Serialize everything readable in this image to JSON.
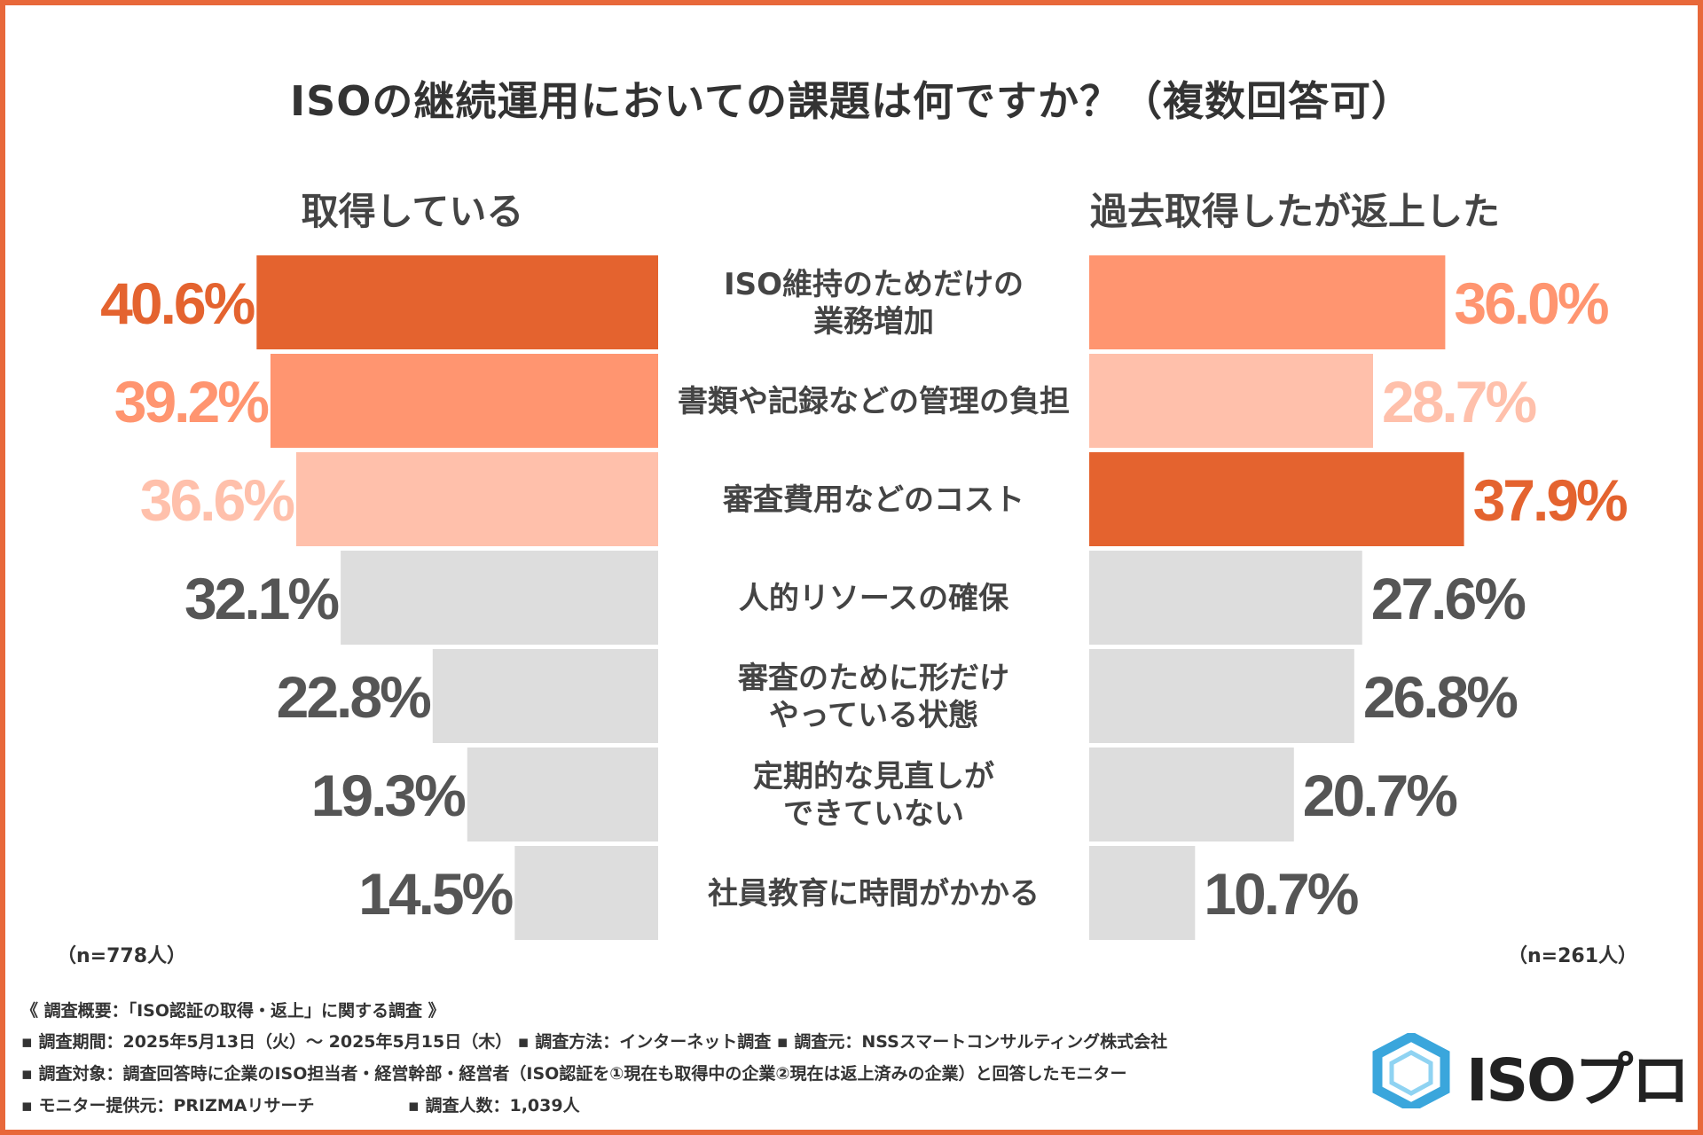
{
  "title": "ISOの継続運用においての課題は何ですか？（複数回答可）",
  "left_heading": "取得している",
  "right_heading": "過去取得したが返上した",
  "left_n": "（n=778人）",
  "right_n": "（n=261人）",
  "colors": {
    "top1": "#e4632f",
    "top2": "#ff9570",
    "top3": "#ffc0ab",
    "other": "#dddddd",
    "label_other": "#555555",
    "frame": "#e8683a",
    "logo": "#3aa6dc"
  },
  "chart_data": {
    "type": "bar",
    "orientation": "horizontal-butterfly",
    "title": "ISOの継続運用においての課題は何ですか？（複数回答可）",
    "unit": "%",
    "categories": [
      [
        "ISO維持のためだけの",
        "業務増加"
      ],
      [
        "書類や記録などの管理の負担"
      ],
      [
        "審査費用などのコスト"
      ],
      [
        "人的リソースの確保"
      ],
      [
        "審査のために形だけ",
        "やっている状態"
      ],
      [
        "定期的な見直しが",
        "できていない"
      ],
      [
        "社員教育に時間がかかる"
      ]
    ],
    "series": [
      {
        "name": "取得している",
        "side": "left",
        "values": [
          40.6,
          39.2,
          36.6,
          32.1,
          22.8,
          19.3,
          14.5
        ],
        "labels": [
          "40.6%",
          "39.2%",
          "36.6%",
          "32.1%",
          "22.8%",
          "19.3%",
          "14.5%"
        ],
        "rank_colors": [
          "top1",
          "top2",
          "top3",
          "other",
          "other",
          "other",
          "other"
        ]
      },
      {
        "name": "過去取得したが返上した",
        "side": "right",
        "values": [
          36.0,
          28.7,
          37.9,
          27.6,
          26.8,
          20.7,
          10.7
        ],
        "labels": [
          "36.0%",
          "28.7%",
          "37.9%",
          "27.6%",
          "26.8%",
          "20.7%",
          "10.7%"
        ],
        "rank_colors": [
          "top2",
          "top3",
          "top1",
          "other",
          "other",
          "other",
          "other"
        ]
      }
    ],
    "xlim": [
      0,
      45
    ]
  },
  "footer": {
    "line1": "《 調査概要：「ISO認証の取得・返上」に関する調査 》",
    "line2": "▪ 調査期間：2025年5月13日（火）～ 2025年5月15日（木） ▪ 調査方法：インターネット調査 ▪ 調査元：NSSスマートコンサルティング株式会社",
    "line3": "▪ 調査対象：調査回答時に企業のISO担当者・経営幹部・経営者（ISO認証を①現在も取得中の企業②現在は返上済みの企業）と回答したモニター",
    "line4a": "▪ モニター提供元：PRIZMAリサーチ",
    "line4b": "▪ 調査人数：1,039人"
  },
  "logo": {
    "text": "ISOプロ",
    "icon": "hexagon-icon"
  }
}
